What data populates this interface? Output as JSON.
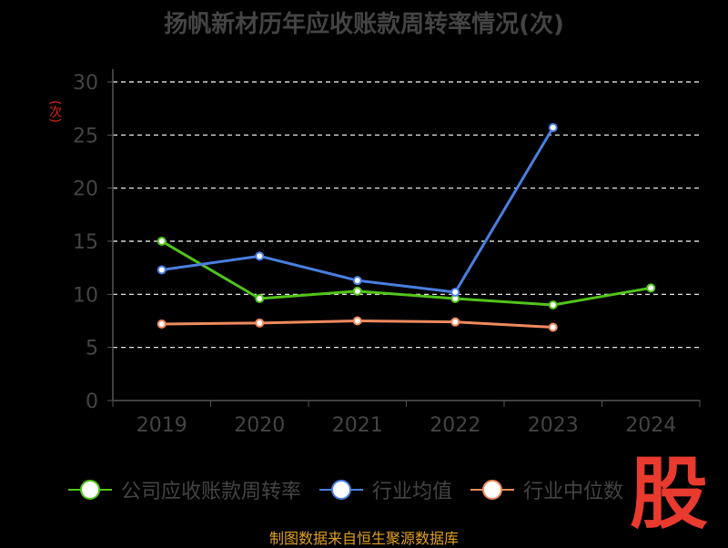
{
  "chart_data": {
    "type": "line",
    "title": "扬帆新材历年应收账款周转率情况(次)",
    "ylabel": "(次)",
    "categories": [
      "2019",
      "2020",
      "2021",
      "2022",
      "2023",
      "2024"
    ],
    "ylim": [
      0,
      30
    ],
    "yticks": [
      0,
      5,
      10,
      15,
      20,
      25,
      30
    ],
    "grid": true,
    "legend_position": "bottom",
    "series": [
      {
        "name": "公司应收账款周转率",
        "color": "#52c41a",
        "values": [
          15.0,
          9.6,
          10.3,
          9.6,
          9.0,
          10.6
        ]
      },
      {
        "name": "行业均值",
        "color": "#4a7fe0",
        "values": [
          12.3,
          13.6,
          11.3,
          10.2,
          25.7,
          null
        ]
      },
      {
        "name": "行业中位数",
        "color": "#f08a5d",
        "values": [
          7.2,
          7.3,
          7.5,
          7.4,
          6.9,
          null
        ]
      }
    ]
  },
  "source_text": "制图数据来自恒生聚源数据库",
  "watermark_text": "股"
}
